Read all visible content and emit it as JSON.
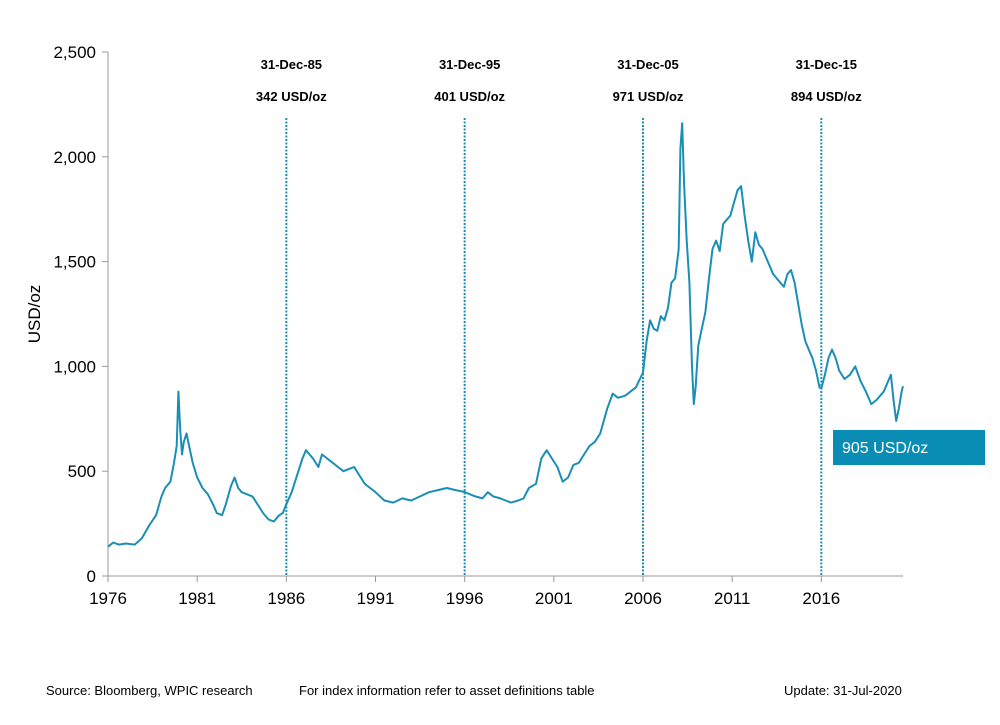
{
  "chart_data": {
    "type": "line",
    "title": "",
    "xlabel": "",
    "ylabel": "USD/oz",
    "xlim": [
      1976,
      2020.58
    ],
    "ylim": [
      0,
      2500
    ],
    "x_ticks": [
      "1976",
      "1981",
      "1986",
      "1991",
      "1996",
      "2001",
      "2006",
      "2011",
      "2016"
    ],
    "y_ticks": [
      "0",
      "500",
      "1,000",
      "1,500",
      "2,000",
      "2,500"
    ],
    "grid": false,
    "series_color": "#1a8fb5",
    "series": [
      {
        "name": "",
        "x": [
          1976.0,
          1976.3,
          1976.6,
          1977.0,
          1977.5,
          1977.9,
          1978.3,
          1978.7,
          1979.0,
          1979.2,
          1979.5,
          1979.7,
          1979.85,
          1979.95,
          1980.05,
          1980.15,
          1980.25,
          1980.4,
          1980.55,
          1980.75,
          1981.0,
          1981.3,
          1981.6,
          1981.9,
          1982.1,
          1982.4,
          1982.6,
          1982.9,
          1983.1,
          1983.3,
          1983.5,
          1983.8,
          1984.1,
          1984.4,
          1984.7,
          1985.0,
          1985.3,
          1985.6,
          1985.8,
          1986.0,
          1986.3,
          1986.6,
          1986.9,
          1987.1,
          1987.3,
          1987.5,
          1987.8,
          1988.0,
          1988.3,
          1988.6,
          1988.9,
          1989.2,
          1989.5,
          1989.8,
          1990.1,
          1990.4,
          1990.7,
          1991.0,
          1991.5,
          1992.0,
          1992.5,
          1993.0,
          1993.5,
          1994.0,
          1994.5,
          1995.0,
          1995.5,
          1996.0,
          1996.3,
          1996.6,
          1997.0,
          1997.3,
          1997.6,
          1998.0,
          1998.3,
          1998.6,
          1999.0,
          1999.3,
          1999.6,
          2000.0,
          2000.3,
          2000.6,
          2000.9,
          2001.2,
          2001.5,
          2001.8,
          2002.1,
          2002.4,
          2002.7,
          2003.0,
          2003.3,
          2003.6,
          2004.0,
          2004.3,
          2004.6,
          2005.0,
          2005.3,
          2005.6,
          2006.0,
          2006.2,
          2006.4,
          2006.6,
          2006.8,
          2007.0,
          2007.2,
          2007.4,
          2007.6,
          2007.8,
          2008.0,
          2008.1,
          2008.2,
          2008.3,
          2008.45,
          2008.6,
          2008.75,
          2008.85,
          2008.95,
          2009.1,
          2009.3,
          2009.5,
          2009.7,
          2009.9,
          2010.1,
          2010.3,
          2010.5,
          2010.7,
          2010.9,
          2011.1,
          2011.3,
          2011.5,
          2011.7,
          2011.9,
          2012.1,
          2012.3,
          2012.5,
          2012.7,
          2012.9,
          2013.1,
          2013.3,
          2013.5,
          2013.7,
          2013.9,
          2014.1,
          2014.3,
          2014.5,
          2014.7,
          2014.9,
          2015.1,
          2015.3,
          2015.5,
          2015.7,
          2015.9,
          2016.0,
          2016.2,
          2016.4,
          2016.6,
          2016.8,
          2017.0,
          2017.3,
          2017.6,
          2017.9,
          2018.2,
          2018.5,
          2018.8,
          2019.1,
          2019.3,
          2019.5,
          2019.7,
          2019.9,
          2020.05,
          2020.2,
          2020.35,
          2020.5,
          2020.58
        ],
        "values": [
          140,
          160,
          150,
          155,
          150,
          180,
          240,
          290,
          380,
          420,
          450,
          540,
          620,
          880,
          700,
          580,
          640,
          680,
          620,
          540,
          470,
          420,
          390,
          340,
          300,
          290,
          340,
          430,
          470,
          420,
          400,
          390,
          380,
          340,
          300,
          270,
          260,
          290,
          300,
          342,
          400,
          480,
          560,
          600,
          580,
          560,
          520,
          580,
          560,
          540,
          520,
          500,
          510,
          520,
          480,
          440,
          420,
          400,
          360,
          350,
          370,
          360,
          380,
          400,
          410,
          420,
          410,
          401,
          390,
          380,
          370,
          400,
          380,
          370,
          360,
          350,
          360,
          370,
          420,
          440,
          560,
          600,
          560,
          520,
          450,
          470,
          530,
          540,
          580,
          620,
          640,
          680,
          800,
          870,
          850,
          860,
          880,
          900,
          971,
          1120,
          1220,
          1180,
          1170,
          1240,
          1220,
          1280,
          1400,
          1420,
          1560,
          2040,
          2160,
          1880,
          1600,
          1400,
          1000,
          820,
          900,
          1100,
          1180,
          1260,
          1420,
          1560,
          1600,
          1550,
          1680,
          1700,
          1720,
          1780,
          1840,
          1860,
          1720,
          1600,
          1500,
          1640,
          1580,
          1560,
          1520,
          1480,
          1440,
          1420,
          1400,
          1380,
          1440,
          1460,
          1400,
          1300,
          1200,
          1120,
          1080,
          1040,
          980,
          900,
          894,
          960,
          1040,
          1080,
          1040,
          980,
          940,
          960,
          1000,
          930,
          880,
          820,
          840,
          860,
          880,
          920,
          960,
          840,
          740,
          800,
          880,
          905
        ]
      }
    ],
    "annotations": [
      {
        "x": 1986.0,
        "date": "31-Dec-85",
        "value": "342 USD/oz"
      },
      {
        "x": 1996.0,
        "date": "31-Dec-95",
        "value": "401 USD/oz"
      },
      {
        "x": 2006.0,
        "date": "31-Dec-05",
        "value": "971 USD/oz"
      },
      {
        "x": 2016.0,
        "date": "31-Dec-15",
        "value": "894 USD/oz"
      }
    ],
    "callout": {
      "text": "905 USD/oz",
      "color": "#0a8db4"
    }
  },
  "footer": {
    "source": "Source: Bloomberg, WPIC research",
    "note": "For index information refer to asset definitions table",
    "update": "Update: 31-Jul-2020"
  }
}
